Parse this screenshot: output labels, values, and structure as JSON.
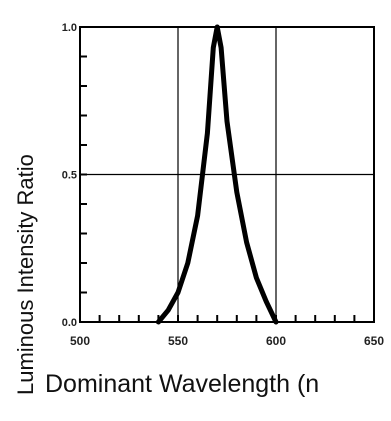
{
  "chart_data": {
    "type": "line",
    "title": "",
    "xlabel": "Dominant Wavelength (n",
    "ylabel": "Luminous Intensity Ratio",
    "xlim": [
      500,
      650
    ],
    "ylim": [
      0,
      1.0
    ],
    "x_ticks": [
      "500",
      "550",
      "600",
      "650"
    ],
    "y_ticks": [
      "0.0",
      "0.5",
      "1.0"
    ],
    "grid": true,
    "series": [
      {
        "color": "#000000",
        "x": [
          540,
          545,
          550,
          555,
          560,
          565,
          568,
          570,
          572,
          575,
          580,
          585,
          590,
          595,
          600
        ],
        "y": [
          0.0,
          0.04,
          0.1,
          0.2,
          0.36,
          0.64,
          0.93,
          1.0,
          0.93,
          0.68,
          0.44,
          0.27,
          0.15,
          0.07,
          0.0
        ]
      }
    ]
  }
}
